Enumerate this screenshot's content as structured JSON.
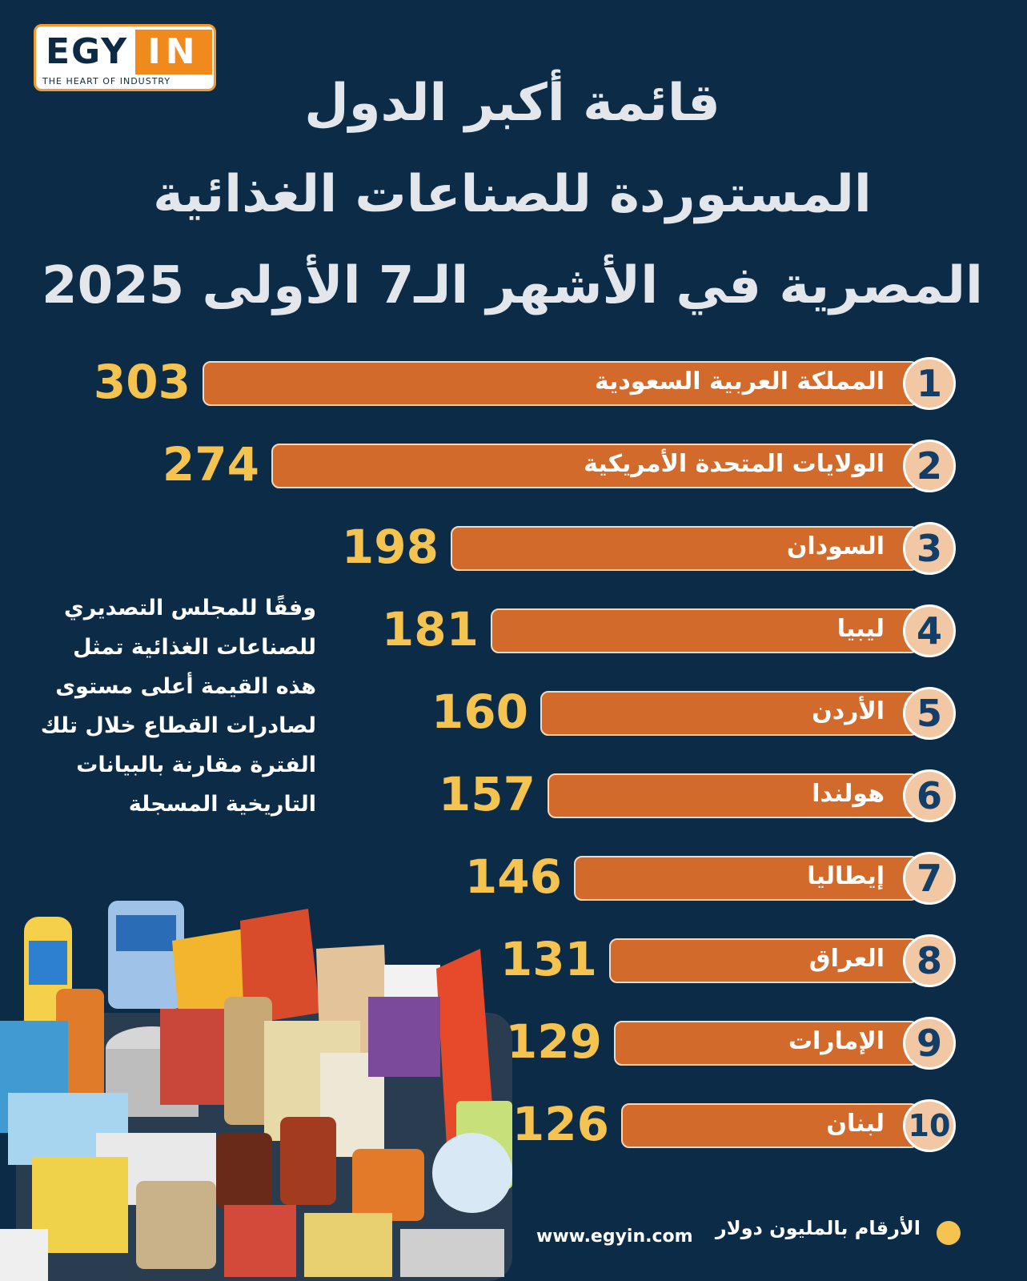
{
  "logo": {
    "egy": "EGY",
    "in": "IN",
    "tagline": "THE HEART OF INDUSTRY"
  },
  "title_lines": [
    "قائمة أكبر الدول",
    "المستوردة للصناعات الغذائية",
    "المصرية في الأشهر الـ7 الأولى 2025"
  ],
  "note": "وفقًا للمجلس التصديري للصناعات الغذائية تمثل هذه القيمة أعلى مستوى لصادرات القطاع خلال تلك الفترة مقارنة بالبيانات التاريخية المسجلة",
  "footer": {
    "url": "www.egyin.com",
    "unit": "الأرقام بالمليون دولار"
  },
  "colors": {
    "bar": "#d26a2c",
    "value": "#f5c350",
    "background": "#0c2b47",
    "badge": "#f2c7a3"
  },
  "chart_data": {
    "type": "bar",
    "orientation": "horizontal",
    "title": "قائمة أكبر الدول المستوردة للصناعات الغذائية المصرية في الأشهر الـ7 الأولى 2025",
    "ranks": [
      "1",
      "2",
      "3",
      "4",
      "5",
      "6",
      "7",
      "8",
      "9",
      "10"
    ],
    "categories": [
      "المملكة العربية السعودية",
      "الولايات المتحدة الأمريكية",
      "السودان",
      "ليبيا",
      "الأردن",
      "هولندا",
      "إيطاليا",
      "العراق",
      "الإمارات",
      "لبنان"
    ],
    "values": [
      303,
      274,
      198,
      181,
      160,
      157,
      146,
      131,
      129,
      126
    ],
    "unit": "الأرقام بالمليون دولار"
  }
}
